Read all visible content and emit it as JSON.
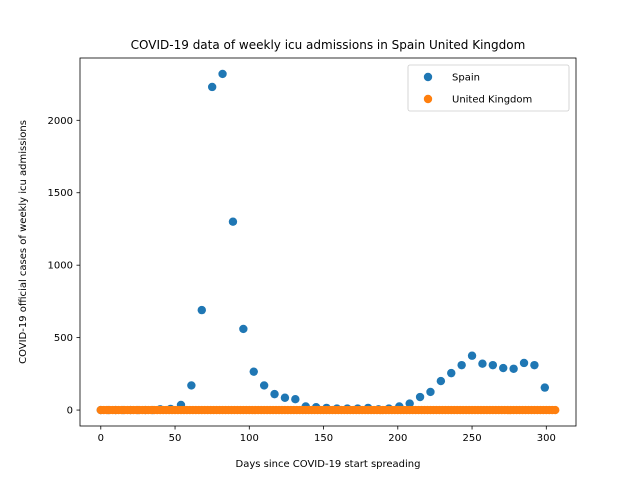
{
  "chart_data": {
    "type": "scatter",
    "title": "COVID-19 data of weekly icu admissions in Spain United Kingdom",
    "xlabel": "Days since COVID-19 start spreading",
    "ylabel": "COVID-19 official cases of weekly icu admissions",
    "xlim": [
      -14,
      320
    ],
    "ylim": [
      -110,
      2430
    ],
    "xticks": [
      0,
      50,
      100,
      150,
      200,
      250,
      300
    ],
    "yticks": [
      0,
      500,
      1000,
      1500,
      2000
    ],
    "legend_position": "top-right",
    "grid": false,
    "series": [
      {
        "name": "Spain",
        "color": "#1f77b4",
        "x": [
          0,
          5,
          10,
          15,
          20,
          25,
          30,
          35,
          40,
          47,
          54,
          61,
          68,
          75,
          82,
          89,
          96,
          103,
          110,
          117,
          124,
          131,
          138,
          145,
          152,
          159,
          166,
          173,
          180,
          187,
          194,
          201,
          208,
          215,
          222,
          229,
          236,
          243,
          250,
          257,
          264,
          271,
          278,
          285,
          292,
          299
        ],
        "y": [
          0,
          0,
          0,
          0,
          0,
          0,
          0,
          0,
          5,
          8,
          35,
          170,
          690,
          2230,
          2320,
          1300,
          560,
          265,
          170,
          110,
          85,
          75,
          25,
          20,
          15,
          10,
          10,
          10,
          15,
          5,
          10,
          25,
          45,
          90,
          125,
          200,
          255,
          310,
          375,
          320,
          310,
          290,
          285,
          325,
          310,
          155
        ]
      },
      {
        "name": "United Kingdom",
        "color": "#ff7f0e",
        "x": [
          0,
          2,
          4,
          6,
          8,
          10,
          12,
          14,
          16,
          18,
          20,
          22,
          24,
          26,
          28,
          30,
          32,
          34,
          36,
          38,
          40,
          42,
          44,
          46,
          48,
          50,
          52,
          54,
          56,
          58,
          60,
          62,
          64,
          66,
          68,
          70,
          72,
          74,
          76,
          78,
          80,
          82,
          84,
          86,
          88,
          90,
          92,
          94,
          96,
          98,
          100,
          102,
          104,
          106,
          108,
          110,
          112,
          114,
          116,
          118,
          120,
          122,
          124,
          126,
          128,
          130,
          132,
          134,
          136,
          138,
          140,
          142,
          144,
          146,
          148,
          150,
          152,
          154,
          156,
          158,
          160,
          162,
          164,
          166,
          168,
          170,
          172,
          174,
          176,
          178,
          180,
          182,
          184,
          186,
          188,
          190,
          192,
          194,
          196,
          198,
          200,
          202,
          204,
          206,
          208,
          210,
          212,
          214,
          216,
          218,
          220,
          222,
          224,
          226,
          228,
          230,
          232,
          234,
          236,
          238,
          240,
          242,
          244,
          246,
          248,
          250,
          252,
          254,
          256,
          258,
          260,
          262,
          264,
          266,
          268,
          270,
          272,
          274,
          276,
          278,
          280,
          282,
          284,
          286,
          288,
          290,
          292,
          294,
          296,
          298,
          300,
          302,
          304,
          306
        ],
        "y": [
          0,
          0,
          0,
          0,
          0,
          0,
          0,
          0,
          0,
          0,
          0,
          0,
          0,
          0,
          0,
          0,
          0,
          0,
          0,
          0,
          0,
          0,
          0,
          0,
          0,
          0,
          0,
          0,
          0,
          0,
          0,
          0,
          0,
          0,
          0,
          0,
          0,
          0,
          0,
          0,
          0,
          0,
          0,
          0,
          0,
          0,
          0,
          0,
          0,
          0,
          0,
          0,
          0,
          0,
          0,
          0,
          0,
          0,
          0,
          0,
          0,
          0,
          0,
          0,
          0,
          0,
          0,
          0,
          0,
          0,
          0,
          0,
          0,
          0,
          0,
          0,
          0,
          0,
          0,
          0,
          0,
          0,
          0,
          0,
          0,
          0,
          0,
          0,
          0,
          0,
          0,
          0,
          0,
          0,
          0,
          0,
          0,
          0,
          0,
          0,
          0,
          0,
          0,
          0,
          0,
          0,
          0,
          0,
          0,
          0,
          0,
          0,
          0,
          0,
          0,
          0,
          0,
          0,
          0,
          0,
          0,
          0,
          0,
          0,
          0,
          0,
          0,
          0,
          0,
          0,
          0,
          0,
          0,
          0,
          0,
          0,
          0,
          0,
          0,
          0,
          0,
          0,
          0,
          0,
          0,
          0,
          0,
          0,
          0,
          0,
          0,
          0,
          0,
          0
        ]
      }
    ]
  }
}
